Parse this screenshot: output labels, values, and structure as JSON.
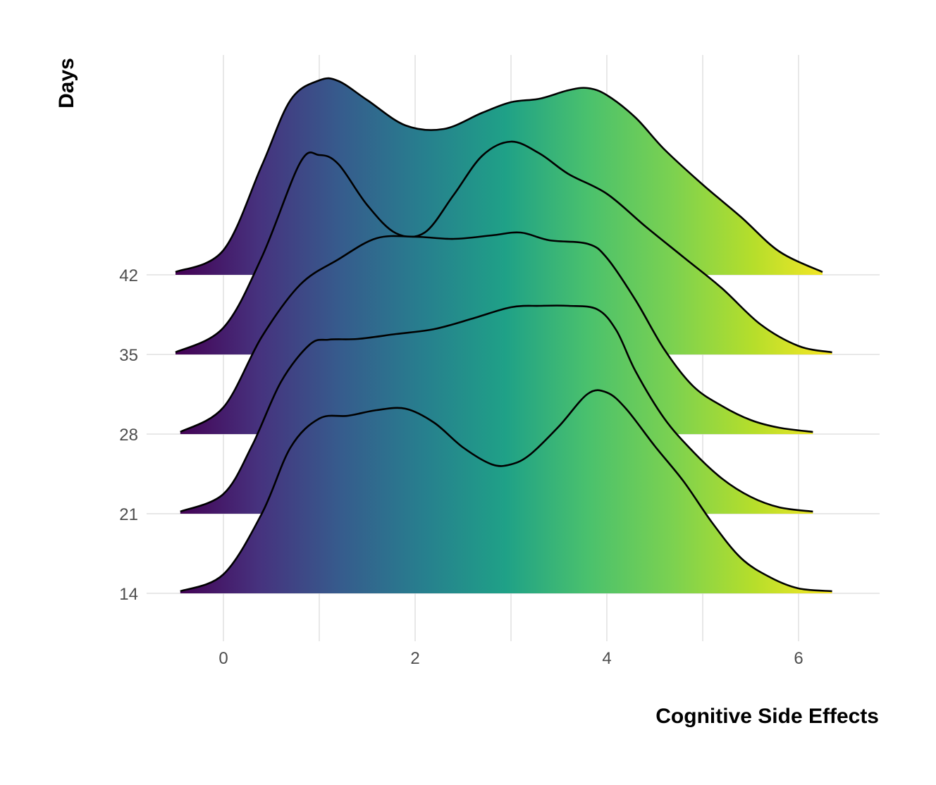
{
  "chart_data": {
    "type": "ridgeline",
    "xlabel": "Cognitive Side Effects",
    "ylabel": "Days",
    "xlim": [
      -0.8,
      6.8
    ],
    "x_ticks": [
      0,
      2,
      4,
      6
    ],
    "fill": "viridis gradient along x",
    "grid": true,
    "categories": [
      "14",
      "21",
      "28",
      "35",
      "42"
    ],
    "series": [
      {
        "category": "14",
        "x": [
          -0.45,
          0.0,
          0.4,
          0.7,
          1.0,
          1.3,
          1.6,
          1.9,
          2.2,
          2.5,
          2.8,
          3.0,
          3.2,
          3.5,
          3.8,
          4.0,
          4.2,
          4.5,
          4.8,
          5.1,
          5.4,
          5.7,
          6.0,
          6.35
        ],
        "y": [
          0.03,
          0.27,
          1.13,
          2.07,
          2.48,
          2.52,
          2.6,
          2.62,
          2.42,
          2.07,
          1.83,
          1.83,
          1.97,
          2.37,
          2.83,
          2.85,
          2.62,
          2.09,
          1.59,
          1.0,
          0.5,
          0.23,
          0.07,
          0.03
        ]
      },
      {
        "category": "21",
        "x": [
          -0.45,
          0.0,
          0.3,
          0.6,
          0.9,
          1.1,
          1.4,
          1.8,
          2.2,
          2.6,
          3.0,
          3.3,
          3.6,
          3.9,
          4.1,
          4.3,
          4.6,
          4.9,
          5.2,
          5.5,
          5.8,
          6.15
        ],
        "y": [
          0.03,
          0.28,
          0.97,
          1.87,
          2.4,
          2.47,
          2.48,
          2.55,
          2.62,
          2.77,
          2.93,
          2.95,
          2.95,
          2.9,
          2.6,
          2.02,
          1.35,
          0.88,
          0.5,
          0.24,
          0.09,
          0.03
        ]
      },
      {
        "category": "28",
        "x": [
          -0.45,
          0.0,
          0.4,
          0.8,
          1.2,
          1.6,
          2.0,
          2.4,
          2.8,
          3.1,
          3.4,
          3.8,
          4.0,
          4.3,
          4.6,
          4.9,
          5.2,
          5.5,
          5.8,
          6.15
        ],
        "y": [
          0.03,
          0.38,
          1.38,
          2.12,
          2.48,
          2.78,
          2.8,
          2.77,
          2.82,
          2.86,
          2.75,
          2.7,
          2.5,
          1.9,
          1.2,
          0.68,
          0.4,
          0.2,
          0.09,
          0.03
        ]
      },
      {
        "category": "35",
        "x": [
          -0.5,
          0.0,
          0.4,
          0.8,
          1.0,
          1.2,
          1.5,
          1.8,
          2.1,
          2.4,
          2.7,
          3.0,
          3.3,
          3.6,
          4.0,
          4.4,
          4.8,
          5.2,
          5.6,
          6.0,
          6.35
        ],
        "y": [
          0.03,
          0.38,
          1.38,
          2.72,
          2.83,
          2.7,
          2.12,
          1.72,
          1.73,
          2.26,
          2.82,
          3.02,
          2.85,
          2.56,
          2.28,
          1.82,
          1.38,
          0.94,
          0.43,
          0.12,
          0.03
        ]
      },
      {
        "category": "42",
        "x": [
          -0.5,
          0.0,
          0.4,
          0.7,
          1.0,
          1.2,
          1.5,
          1.9,
          2.3,
          2.7,
          3.0,
          3.3,
          3.6,
          3.8,
          4.0,
          4.3,
          4.6,
          5.0,
          5.4,
          5.8,
          6.25
        ],
        "y": [
          0.04,
          0.35,
          1.55,
          2.48,
          2.76,
          2.75,
          2.48,
          2.12,
          2.07,
          2.3,
          2.45,
          2.5,
          2.62,
          2.65,
          2.55,
          2.23,
          1.78,
          1.28,
          0.82,
          0.33,
          0.04
        ]
      }
    ]
  }
}
